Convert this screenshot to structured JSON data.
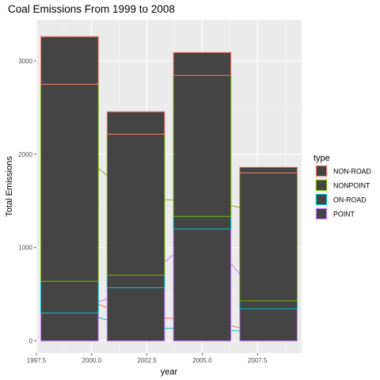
{
  "chart_data": {
    "type": "bar",
    "title": "Coal Emissions From 1999 to 2008",
    "xlabel": "year",
    "ylabel": "Total Emissions",
    "xlim": [
      1997.5,
      2009.5
    ],
    "ylim": [
      -130,
      3440
    ],
    "x_ticks": [
      1997.5,
      2000.0,
      2002.5,
      2005.0,
      2007.5
    ],
    "x_tick_labels": [
      "1997.5",
      "2000.0",
      "2002.5",
      "2005.0",
      "2007.5"
    ],
    "y_ticks": [
      0,
      1000,
      2000,
      3000
    ],
    "y_tick_labels": [
      "0",
      "1000",
      "2000",
      "3000"
    ],
    "grid": true,
    "legend_position": "right",
    "legend_title": "type",
    "categories": [
      1999,
      2002,
      2005,
      2008
    ],
    "bar_width": 2.6,
    "bar_fill": "#444444",
    "panel_background": "#ebebeb",
    "series": [
      {
        "name": "NON-ROAD",
        "color": "#F8766D",
        "values": [
          510,
          240,
          245,
          60
        ]
      },
      {
        "name": "NONPOINT",
        "color": "#7CAE00",
        "values": [
          2110,
          1510,
          1510,
          1370
        ]
      },
      {
        "name": "ON-ROAD",
        "color": "#00BFC4",
        "values": [
          340,
          135,
          135,
          85
        ]
      },
      {
        "name": "POINT",
        "color": "#C77CFF",
        "values": [
          300,
          570,
          1200,
          345
        ]
      }
    ]
  }
}
